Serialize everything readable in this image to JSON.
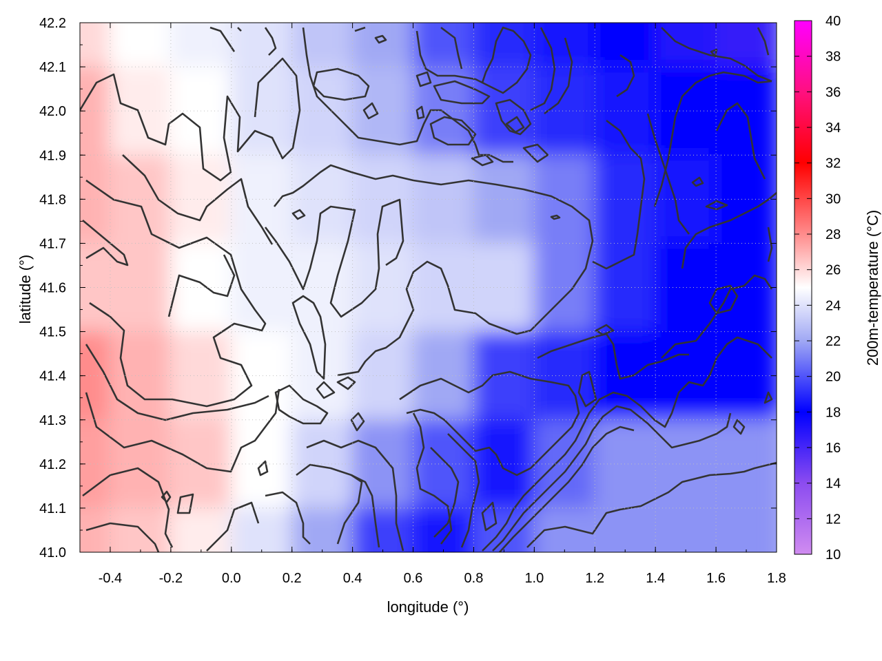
{
  "chart_data": {
    "type": "heatmap",
    "title": "",
    "xlabel": "longitude (°)",
    "ylabel": "latitude (°)",
    "colorbar_label": "200m-temperature (°C)",
    "xlim": [
      -0.5,
      1.8
    ],
    "ylim": [
      41.0,
      42.2
    ],
    "x_ticks": [
      "-0.4",
      "-0.2",
      "0.0",
      "0.2",
      "0.4",
      "0.6",
      "0.8",
      "1.0",
      "1.2",
      "1.4",
      "1.6",
      "1.8"
    ],
    "x_tick_values": [
      -0.4,
      -0.2,
      0.0,
      0.2,
      0.4,
      0.6,
      0.8,
      1.0,
      1.2,
      1.4,
      1.6,
      1.8
    ],
    "y_ticks": [
      "41.0",
      "41.1",
      "41.2",
      "41.3",
      "41.4",
      "41.5",
      "41.6",
      "41.7",
      "41.8",
      "41.9",
      "42.0",
      "42.1",
      "42.2"
    ],
    "y_tick_values": [
      41.0,
      41.1,
      41.2,
      41.3,
      41.4,
      41.5,
      41.6,
      41.7,
      41.8,
      41.9,
      42.0,
      42.1,
      42.2
    ],
    "colorbar_range": [
      10,
      40
    ],
    "colorbar_ticks": [
      "10",
      "12",
      "14",
      "16",
      "18",
      "20",
      "22",
      "24",
      "26",
      "28",
      "30",
      "32",
      "34",
      "36",
      "38",
      "40"
    ],
    "colorbar_tick_values": [
      10,
      12,
      14,
      16,
      18,
      20,
      22,
      24,
      26,
      28,
      30,
      32,
      34,
      36,
      38,
      40
    ],
    "colormap": [
      {
        "value": 10,
        "color": "#d08cf0"
      },
      {
        "value": 14,
        "color": "#8c4cf0"
      },
      {
        "value": 18,
        "color": "#0000ff"
      },
      {
        "value": 22,
        "color": "#a0a8f4"
      },
      {
        "value": 25,
        "color": "#ffffff"
      },
      {
        "value": 28,
        "color": "#ff8c8c"
      },
      {
        "value": 32,
        "color": "#ff0000"
      },
      {
        "value": 36,
        "color": "#ff1080"
      },
      {
        "value": 40,
        "color": "#ff00ff"
      }
    ],
    "contour_overlay": true,
    "grid": true,
    "field_description": "warm (~26-29 °C) in the west, near 24-25 °C in the centre, cool (~17-20 °C) in the east",
    "grid_samples": {
      "lons": [
        -0.5,
        -0.3,
        -0.1,
        0.1,
        0.3,
        0.5,
        0.7,
        0.9,
        1.1,
        1.3,
        1.5,
        1.7
      ],
      "lats": [
        42.2,
        42.0,
        41.8,
        41.6,
        41.4,
        41.2,
        41.0
      ],
      "values": [
        [
          26.0,
          25.0,
          24.5,
          24.0,
          23.0,
          22.0,
          20.0,
          19.0,
          18.5,
          18.0,
          17.0,
          16.5
        ],
        [
          27.0,
          25.5,
          25.0,
          24.0,
          23.5,
          22.5,
          21.0,
          19.5,
          19.0,
          18.5,
          18.0,
          18.0
        ],
        [
          27.0,
          26.5,
          25.5,
          24.5,
          24.0,
          23.5,
          23.0,
          22.0,
          21.0,
          19.0,
          18.5,
          18.0
        ],
        [
          26.5,
          26.5,
          25.0,
          24.5,
          24.5,
          24.0,
          23.5,
          23.5,
          21.0,
          19.0,
          18.0,
          18.0
        ],
        [
          28.0,
          27.0,
          26.0,
          25.0,
          24.5,
          23.5,
          22.0,
          19.5,
          19.0,
          18.0,
          18.0,
          18.0
        ],
        [
          27.5,
          27.0,
          26.5,
          25.0,
          23.5,
          21.5,
          20.0,
          18.5,
          20.5,
          21.5,
          21.5,
          21.5
        ],
        [
          27.0,
          26.5,
          25.5,
          24.0,
          22.0,
          19.5,
          18.5,
          20.0,
          21.5,
          21.5,
          21.5,
          21.5
        ]
      ]
    }
  }
}
